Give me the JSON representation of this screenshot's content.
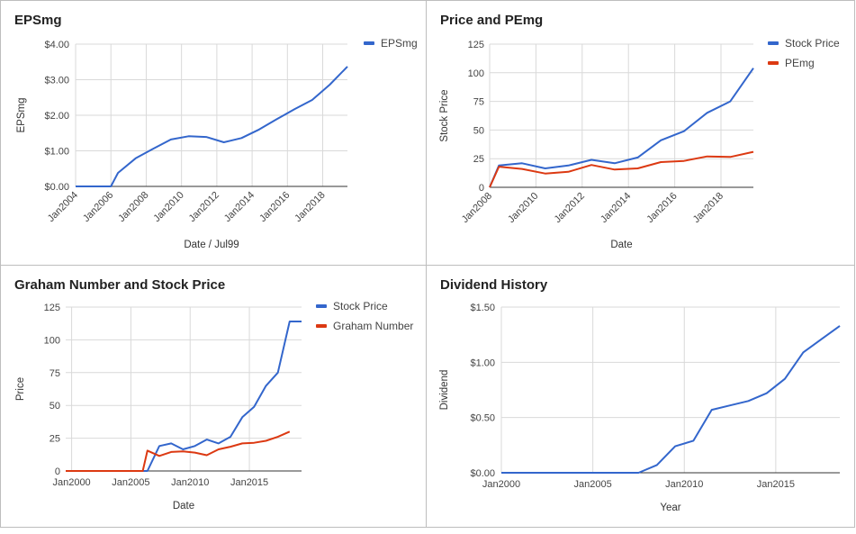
{
  "colors": {
    "blue": "#3366cc",
    "red": "#dc3912",
    "grid": "#d9d9d9",
    "axis": "#333333"
  },
  "chart_data": [
    {
      "type": "line",
      "title": "EPSmg",
      "xlabel": "Date / Jul99",
      "ylabel": "EPSmg",
      "ylim": [
        0,
        4
      ],
      "yticks": [
        "$0.00",
        "$1.00",
        "$2.00",
        "$3.00",
        "$4.00"
      ],
      "xlim": [
        2004,
        2019.4
      ],
      "xticks": [
        2004,
        2006,
        2008,
        2010,
        2012,
        2014,
        2016,
        2018
      ],
      "xtick_labels": [
        "Jan2004",
        "Jan2006",
        "Jan2008",
        "Jan2010",
        "Jan2012",
        "Jan2014",
        "Jan2016",
        "Jan2018"
      ],
      "legend_position": "top-right",
      "series": [
        {
          "name": "EPSmg",
          "color": "blue",
          "x": [
            2004.0,
            2006.0,
            2006.4,
            2007.4,
            2008.4,
            2009.4,
            2010.4,
            2011.4,
            2012.4,
            2013.4,
            2014.4,
            2015.4,
            2016.4,
            2017.4,
            2018.4,
            2019.4
          ],
          "y": [
            0.0,
            0.0,
            0.38,
            0.79,
            1.06,
            1.32,
            1.41,
            1.39,
            1.24,
            1.36,
            1.6,
            1.89,
            2.17,
            2.43,
            2.86,
            3.37
          ]
        }
      ]
    },
    {
      "type": "line",
      "title": "Price and PEmg",
      "xlabel": "Date",
      "ylabel": "Stock Price",
      "ylim": [
        0,
        125
      ],
      "yticks": [
        "0",
        "25",
        "50",
        "75",
        "100",
        "125"
      ],
      "xlim": [
        2008,
        2019.4
      ],
      "xticks": [
        2008,
        2010,
        2012,
        2014,
        2016,
        2018
      ],
      "xtick_labels": [
        "Jan2008",
        "Jan2010",
        "Jan2012",
        "Jan2014",
        "Jan2016",
        "Jan2018"
      ],
      "legend_position": "top-right",
      "series": [
        {
          "name": "Stock Price",
          "color": "blue",
          "x": [
            2008.0,
            2008.4,
            2009.4,
            2010.4,
            2011.4,
            2012.4,
            2013.4,
            2014.4,
            2015.4,
            2016.4,
            2017.4,
            2018.4,
            2019.4
          ],
          "y": [
            0,
            19,
            21,
            16.5,
            19,
            24,
            21,
            26,
            41,
            49,
            65,
            75,
            104
          ]
        },
        {
          "name": "PEmg",
          "color": "red",
          "x": [
            2008.0,
            2008.4,
            2009.4,
            2010.4,
            2011.4,
            2012.4,
            2013.4,
            2014.4,
            2015.4,
            2016.4,
            2017.4,
            2018.4,
            2019.4
          ],
          "y": [
            0,
            18,
            16,
            12,
            13.5,
            19.5,
            15.5,
            16.5,
            22,
            23,
            27,
            26.5,
            31
          ]
        }
      ]
    },
    {
      "type": "line",
      "title": "Graham Number and Stock Price",
      "xlabel": "Date",
      "ylabel": "Price",
      "ylim": [
        0,
        125
      ],
      "yticks": [
        "0",
        "25",
        "50",
        "75",
        "100",
        "125"
      ],
      "xlim": [
        1999.5,
        2019.4
      ],
      "xticks": [
        2000,
        2005,
        2010,
        2015
      ],
      "xtick_labels": [
        "Jan2000",
        "Jan2005",
        "Jan2010",
        "Jan2015"
      ],
      "legend_position": "top-right",
      "series": [
        {
          "name": "Stock Price",
          "color": "blue",
          "x": [
            1999.5,
            2006.4,
            2007.4,
            2008.4,
            2009.4,
            2010.4,
            2011.4,
            2012.4,
            2013.4,
            2014.4,
            2015.4,
            2016.4,
            2017.4,
            2018.4,
            2019.4
          ],
          "y": [
            0,
            0,
            19,
            21,
            16.5,
            19,
            24,
            21,
            26,
            41,
            49,
            65,
            75,
            114,
            114
          ]
        },
        {
          "name": "Graham Number",
          "color": "red",
          "x": [
            1999.5,
            2005.6,
            2006.0,
            2006.4,
            2007.4,
            2008.4,
            2009.4,
            2010.4,
            2011.4,
            2012.4,
            2013.4,
            2014.4,
            2015.4,
            2016.4,
            2017.4,
            2018.4
          ],
          "y": [
            0,
            0,
            0,
            15.5,
            11.5,
            14.5,
            15,
            14,
            12,
            16.5,
            18.5,
            21,
            21.5,
            23,
            26,
            30
          ]
        }
      ]
    },
    {
      "type": "line",
      "title": "Dividend History",
      "xlabel": "Year",
      "ylabel": "Dividend",
      "ylim": [
        0,
        1.5
      ],
      "yticks": [
        "$0.00",
        "$0.50",
        "$1.00",
        "$1.50"
      ],
      "xlim": [
        2000,
        2018.5
      ],
      "xticks": [
        2000,
        2005,
        2010,
        2015
      ],
      "xtick_labels": [
        "Jan2000",
        "Jan2005",
        "Jan2010",
        "Jan2015"
      ],
      "legend_position": "none",
      "series": [
        {
          "name": "",
          "color": "blue",
          "x": [
            2000.0,
            2007.5,
            2008.5,
            2009.5,
            2010.5,
            2011.5,
            2012.5,
            2013.5,
            2014.5,
            2015.5,
            2016.5,
            2017.5,
            2018.5
          ],
          "y": [
            0.0,
            0.0,
            0.07,
            0.24,
            0.29,
            0.57,
            0.61,
            0.65,
            0.72,
            0.85,
            1.09,
            1.21,
            1.33
          ]
        }
      ]
    }
  ]
}
